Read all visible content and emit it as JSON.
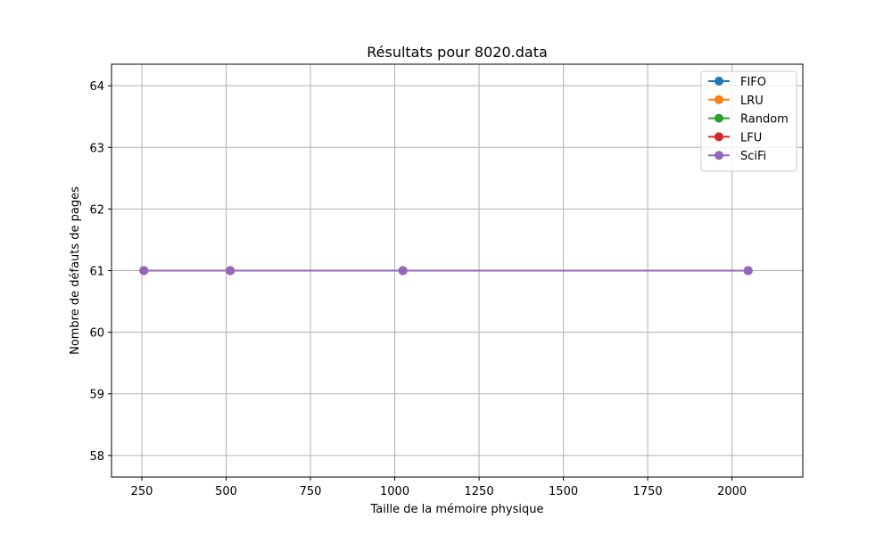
{
  "chart_data": {
    "type": "line",
    "title": "Résultats pour 8020.data",
    "xlabel": "Taille de la mémoire physique",
    "ylabel": "Nombre de défauts de pages",
    "xlim": [
      160,
      2210
    ],
    "ylim": [
      57.65,
      64.35
    ],
    "x_ticks": [
      250,
      500,
      750,
      1000,
      1250,
      1500,
      1750,
      2000
    ],
    "y_ticks": [
      58,
      59,
      60,
      61,
      62,
      63,
      64
    ],
    "grid": true,
    "legend_position": "top-right",
    "x": [
      256,
      512,
      1024,
      2048
    ],
    "series": [
      {
        "name": "FIFO",
        "values": [
          61,
          61,
          61,
          61
        ],
        "color": "#1f77b4"
      },
      {
        "name": "LRU",
        "values": [
          61,
          61,
          61,
          61
        ],
        "color": "#ff7f0e"
      },
      {
        "name": "Random",
        "values": [
          61,
          61,
          61,
          61
        ],
        "color": "#2ca02c"
      },
      {
        "name": "LFU",
        "values": [
          61,
          61,
          61,
          61
        ],
        "color": "#d62728"
      },
      {
        "name": "SciFi",
        "values": [
          61,
          61,
          61,
          61
        ],
        "color": "#9467bd"
      }
    ]
  }
}
